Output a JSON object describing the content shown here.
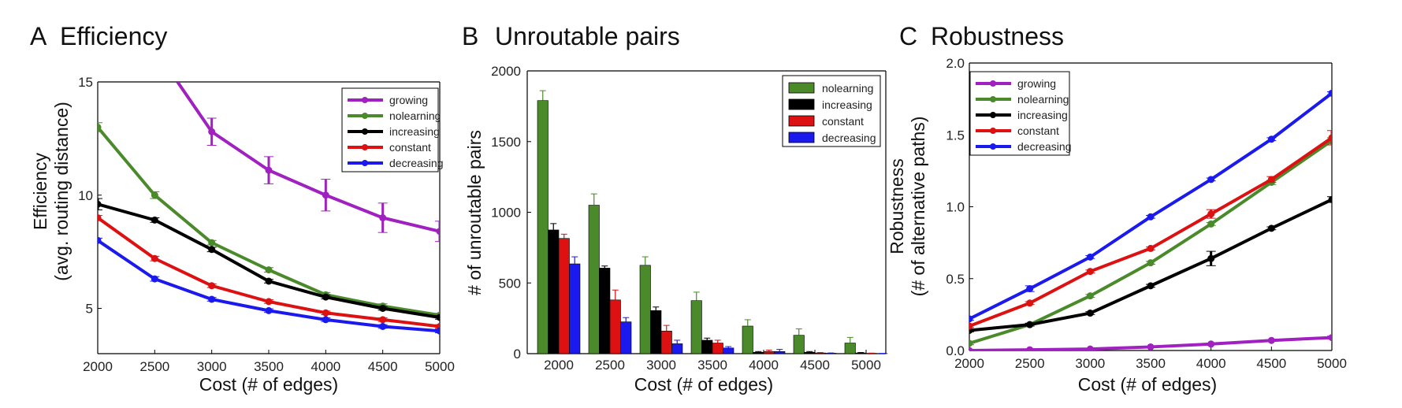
{
  "chart_data": [
    {
      "type": "line",
      "panel_letter": "A",
      "title": "Efficiency",
      "xlabel": "Cost (# of edges)",
      "ylabel": [
        "Efficiency",
        "(avg. routing distance)"
      ],
      "x": [
        2000,
        2500,
        3000,
        3500,
        4000,
        4500,
        5000
      ],
      "xlim": [
        2000,
        5000
      ],
      "ylim": [
        3,
        15
      ],
      "yticks": [
        5,
        10,
        15
      ],
      "xticks": [
        2000,
        2500,
        3000,
        3500,
        4000,
        4500,
        5000
      ],
      "legend_position": "top-right",
      "series": [
        {
          "name": "growing",
          "color": "#a020c0",
          "values": [
            null,
            null,
            12.8,
            11.1,
            10.0,
            9.0,
            8.4
          ],
          "errors": [
            0,
            0,
            0.6,
            0.6,
            0.7,
            0.65,
            0.45
          ],
          "start_segment": [
            2700,
            15.0
          ]
        },
        {
          "name": "nolearning",
          "color": "#4a8a2a",
          "values": [
            13.0,
            10.0,
            7.9,
            6.7,
            5.6,
            5.1,
            4.7
          ],
          "errors": [
            0.2,
            0.15,
            0.1,
            0.1,
            0.1,
            0.1,
            0.08
          ]
        },
        {
          "name": "increasing",
          "color": "#000000",
          "values": [
            9.6,
            8.9,
            7.6,
            6.2,
            5.5,
            5.0,
            4.6
          ],
          "errors": [
            0.25,
            0.1,
            0.1,
            0.08,
            0.08,
            0.08,
            0.08
          ]
        },
        {
          "name": "constant",
          "color": "#dd1111",
          "values": [
            9.0,
            7.2,
            6.0,
            5.3,
            4.8,
            4.5,
            4.2
          ],
          "errors": [
            0.1,
            0.1,
            0.08,
            0.08,
            0.08,
            0.08,
            0.08
          ]
        },
        {
          "name": "decreasing",
          "color": "#1a1aee",
          "values": [
            8.0,
            6.3,
            5.4,
            4.9,
            4.5,
            4.2,
            4.0
          ],
          "errors": [
            0.1,
            0.1,
            0.08,
            0.08,
            0.08,
            0.08,
            0.08
          ]
        }
      ]
    },
    {
      "type": "bar",
      "panel_letter": "B",
      "title": "Unroutable pairs",
      "xlabel": "Cost (# of edges)",
      "ylabel": [
        "# of unroutable pairs"
      ],
      "categories": [
        "2000",
        "2500",
        "3000",
        "3500",
        "4000",
        "4500",
        "5000"
      ],
      "ylim": [
        0,
        2000
      ],
      "yticks": [
        0,
        500,
        1000,
        1500,
        2000
      ],
      "legend_position": "top-right",
      "series": [
        {
          "name": "nolearning",
          "color": "#4a8a2a",
          "values": [
            1790,
            1050,
            625,
            375,
            195,
            130,
            75
          ],
          "errors": [
            70,
            80,
            60,
            60,
            45,
            45,
            40
          ]
        },
        {
          "name": "increasing",
          "color": "#000000",
          "values": [
            875,
            605,
            305,
            95,
            10,
            10,
            5
          ],
          "errors": [
            45,
            15,
            25,
            15,
            5,
            5,
            3
          ]
        },
        {
          "name": "constant",
          "color": "#dd1111",
          "values": [
            815,
            380,
            160,
            75,
            15,
            5,
            2
          ],
          "errors": [
            30,
            70,
            40,
            20,
            10,
            3,
            2
          ]
        },
        {
          "name": "decreasing",
          "color": "#1a1aee",
          "values": [
            635,
            225,
            70,
            40,
            15,
            3,
            1
          ],
          "errors": [
            50,
            30,
            25,
            10,
            15,
            2,
            1
          ]
        }
      ]
    },
    {
      "type": "line",
      "panel_letter": "C",
      "title": "Robustness",
      "xlabel": "Cost (# of edges)",
      "ylabel": [
        "Robustness",
        "(# of alternative paths)"
      ],
      "x": [
        2000,
        2500,
        3000,
        3500,
        4000,
        4500,
        5000
      ],
      "xlim": [
        2000,
        5000
      ],
      "ylim": [
        0.0,
        2.0
      ],
      "yticks": [
        "0.0",
        "0.5",
        "1.0",
        "1.5",
        "2.0"
      ],
      "xticks": [
        2000,
        2500,
        3000,
        3500,
        4000,
        4500,
        5000
      ],
      "legend_position": "top-left",
      "series": [
        {
          "name": "growing",
          "color": "#a020c0",
          "values": [
            0.0,
            0.005,
            0.01,
            0.025,
            0.045,
            0.07,
            0.09
          ],
          "errors": [
            0,
            0,
            0,
            0,
            0,
            0,
            0.01
          ]
        },
        {
          "name": "nolearning",
          "color": "#4a8a2a",
          "values": [
            0.05,
            0.18,
            0.38,
            0.61,
            0.88,
            1.17,
            1.46
          ],
          "errors": [
            0.01,
            0.01,
            0.01,
            0.01,
            0.01,
            0.015,
            0.02
          ]
        },
        {
          "name": "increasing",
          "color": "#000000",
          "values": [
            0.14,
            0.18,
            0.26,
            0.45,
            0.64,
            0.85,
            1.05
          ],
          "errors": [
            0.01,
            0.01,
            0.01,
            0.01,
            0.05,
            0.01,
            0.02
          ]
        },
        {
          "name": "constant",
          "color": "#dd1111",
          "values": [
            0.17,
            0.33,
            0.55,
            0.71,
            0.95,
            1.19,
            1.48
          ],
          "errors": [
            0.01,
            0.01,
            0.01,
            0.01,
            0.03,
            0.02,
            0.05
          ]
        },
        {
          "name": "decreasing",
          "color": "#1a1aee",
          "values": [
            0.22,
            0.43,
            0.65,
            0.93,
            1.19,
            1.47,
            1.79
          ],
          "errors": [
            0.01,
            0.02,
            0.01,
            0.01,
            0.01,
            0.01,
            0.01
          ]
        }
      ]
    }
  ]
}
